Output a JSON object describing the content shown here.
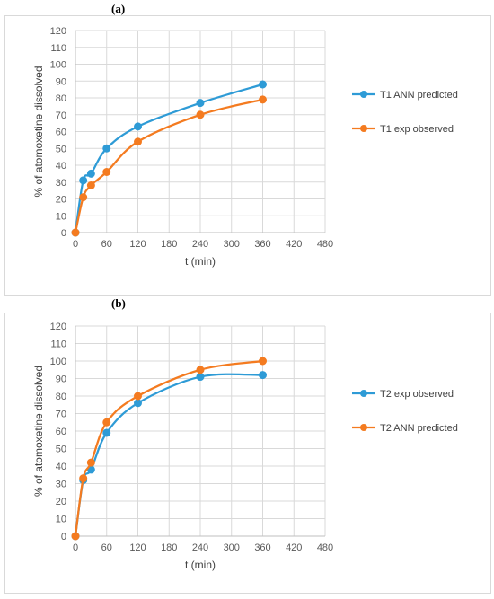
{
  "panels": [
    {
      "label": "(a)"
    },
    {
      "label": "(b)"
    }
  ],
  "chart_data": [
    {
      "type": "line",
      "title": "",
      "xlabel": "t (min)",
      "ylabel": "% of atomoxetine dissolved",
      "xlim": [
        0,
        480
      ],
      "ylim": [
        0,
        120
      ],
      "xticks": [
        0,
        60,
        120,
        180,
        240,
        300,
        360,
        420,
        480
      ],
      "yticks": [
        0,
        10,
        20,
        30,
        40,
        50,
        60,
        70,
        80,
        90,
        100,
        110,
        120
      ],
      "grid": true,
      "legend_position": "right",
      "series": [
        {
          "name": "T1 ANN predicted",
          "color": "#2E9BD6",
          "x": [
            0,
            15,
            30,
            60,
            120,
            240,
            360
          ],
          "y": [
            0,
            31,
            35,
            50,
            63,
            77,
            88
          ]
        },
        {
          "name": "T1 exp observed",
          "color": "#F47B20",
          "x": [
            0,
            15,
            30,
            60,
            120,
            240,
            360
          ],
          "y": [
            0,
            21,
            28,
            36,
            54,
            70,
            79
          ]
        }
      ]
    },
    {
      "type": "line",
      "title": "",
      "xlabel": "t (min)",
      "ylabel": "% of atomoxetine dissolved",
      "xlim": [
        0,
        480
      ],
      "ylim": [
        0,
        120
      ],
      "xticks": [
        0,
        60,
        120,
        180,
        240,
        300,
        360,
        420,
        480
      ],
      "yticks": [
        0,
        10,
        20,
        30,
        40,
        50,
        60,
        70,
        80,
        90,
        100,
        110,
        120
      ],
      "grid": true,
      "legend_position": "right",
      "series": [
        {
          "name": "T2 exp observed",
          "color": "#2E9BD6",
          "x": [
            0,
            15,
            30,
            60,
            120,
            240,
            360
          ],
          "y": [
            0,
            32,
            38,
            59,
            76,
            91,
            92
          ]
        },
        {
          "name": "T2 ANN predicted",
          "color": "#F47B20",
          "x": [
            0,
            15,
            30,
            60,
            120,
            240,
            360
          ],
          "y": [
            0,
            33,
            42,
            65,
            80,
            95,
            100
          ]
        }
      ]
    }
  ]
}
